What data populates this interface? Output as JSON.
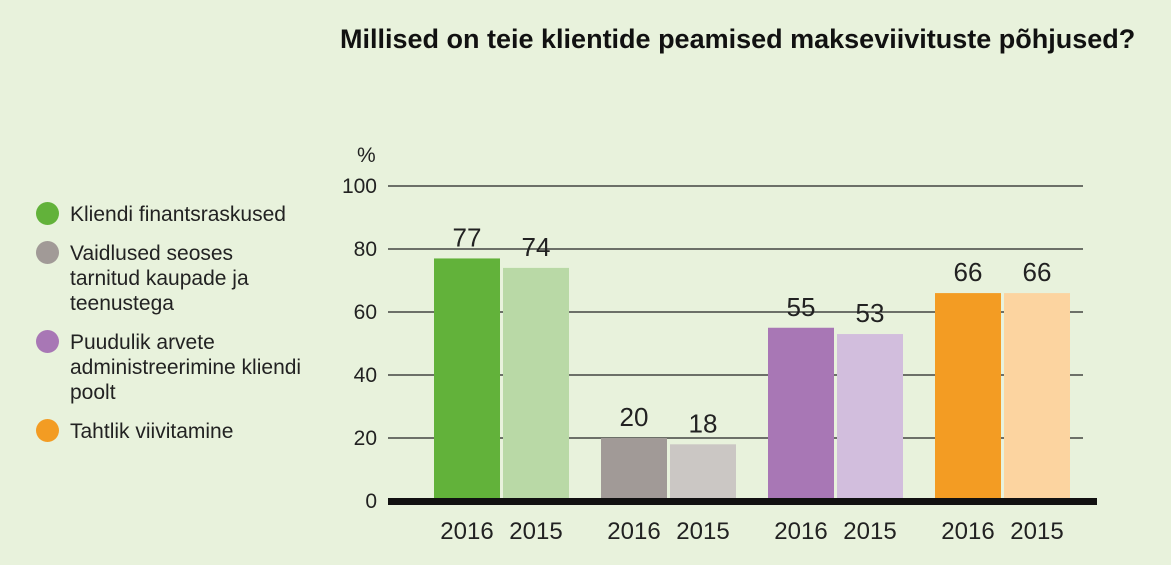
{
  "chart_data": {
    "type": "bar",
    "title": "Millised on teie klientide peamised makseviivituste põhjused?",
    "ylabel": "%",
    "ylim": [
      0,
      100
    ],
    "yticks": [
      0,
      20,
      40,
      60,
      80,
      100
    ],
    "grid": true,
    "legend_position": "left",
    "categories": [
      "Kliendi finantsraskused",
      "Vaidlused seoses tarnitud kaupade ja teenustega",
      "Puudulik arvete administreerimine kliendi poolt",
      "Tahtlik viivitamine"
    ],
    "series": [
      {
        "name": "2016",
        "values": [
          77,
          20,
          55,
          66
        ]
      },
      {
        "name": "2015",
        "values": [
          74,
          18,
          53,
          66
        ]
      }
    ],
    "colors": {
      "2016": [
        "#62b23a",
        "#a19a97",
        "#a877b5",
        "#f39c23"
      ],
      "2015": [
        "#b9d9a6",
        "#cbc7c4",
        "#d2bedd",
        "#fcd4a0"
      ]
    }
  }
}
